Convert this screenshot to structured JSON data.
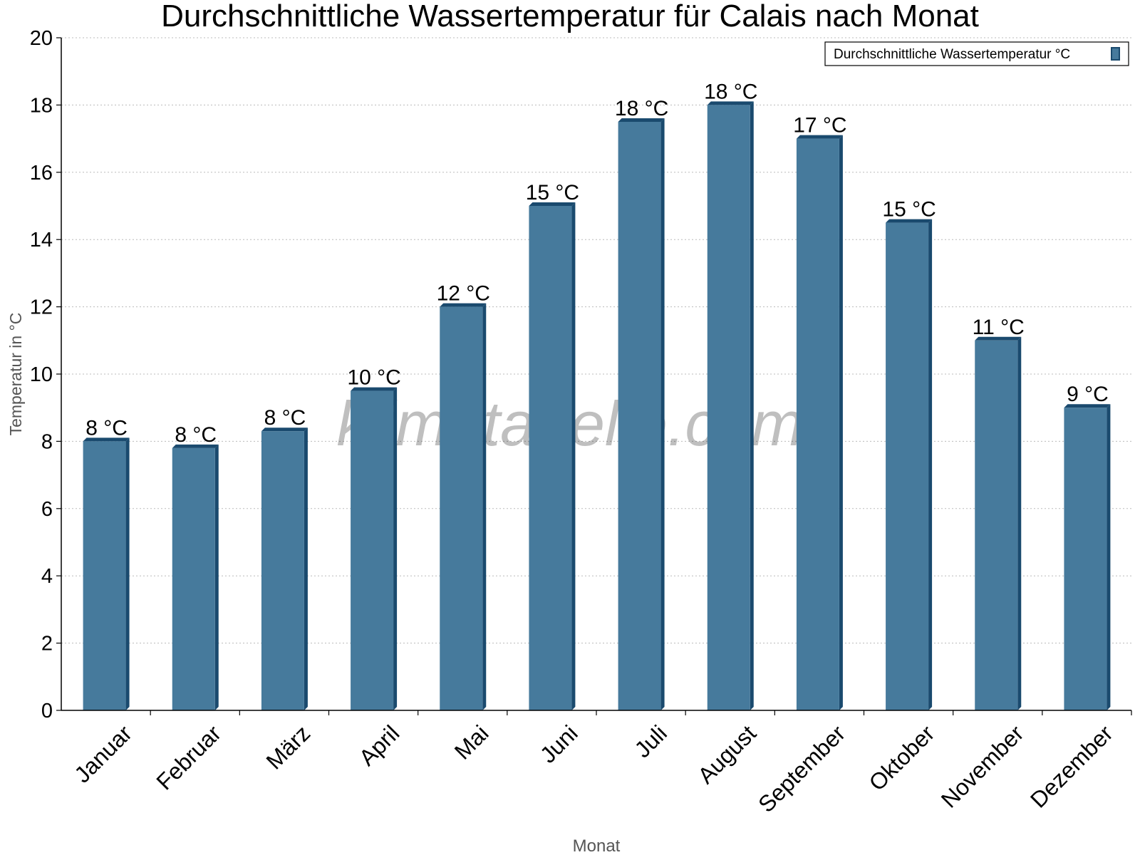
{
  "chart_data": {
    "type": "bar",
    "title": "Durchschnittliche Wassertemperatur für Calais nach Monat",
    "xlabel": "Monat",
    "ylabel": "Temperatur in °C",
    "categories": [
      "Januar",
      "Februar",
      "März",
      "April",
      "Mai",
      "Juni",
      "Juli",
      "August",
      "September",
      "Oktober",
      "November",
      "Dezember"
    ],
    "series": [
      {
        "name": "Durchschnittliche Wassertemperatur °C",
        "values": [
          8.0,
          7.8,
          8.3,
          9.5,
          12.0,
          15.0,
          17.5,
          18.0,
          17.0,
          14.5,
          11.0,
          9.0
        ],
        "data_labels": [
          "8 °C",
          "8 °C",
          "8 °C",
          "10 °C",
          "12 °C",
          "15 °C",
          "18 °C",
          "18 °C",
          "17 °C",
          "15 °C",
          "11 °C",
          "9 °C"
        ]
      }
    ],
    "ylim": [
      0,
      20
    ],
    "yticks": [
      0,
      2,
      4,
      6,
      8,
      10,
      12,
      14,
      16,
      18,
      20
    ],
    "grid": true,
    "legend_position": "top-right",
    "colors": {
      "bar_face": "#467a9c",
      "bar_side": "#1a4a6e"
    },
    "watermark": "klimatabelle.com"
  }
}
